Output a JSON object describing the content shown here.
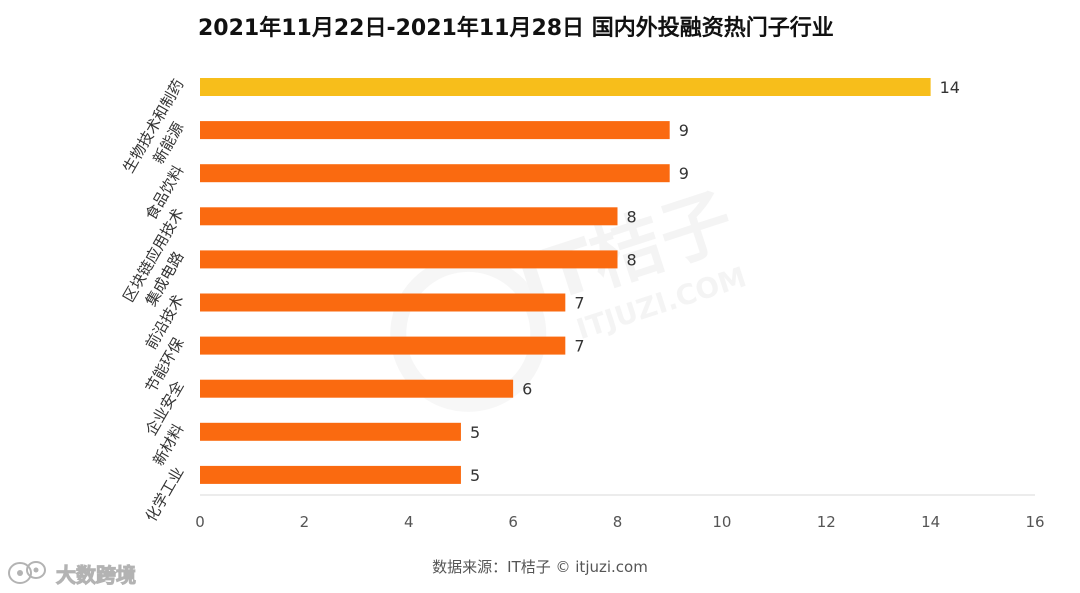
{
  "chart_data": {
    "type": "bar",
    "orientation": "horizontal",
    "title": "2021年11月22日-2021年11月28日 国内外投融资热门子行业",
    "categories": [
      "生物技术和制药",
      "新能源",
      "食品饮料",
      "区块链应用技术",
      "集成电路",
      "前沿技术",
      "节能环保",
      "企业安全",
      "新材料",
      "化学工业"
    ],
    "values": [
      14,
      9,
      9,
      8,
      8,
      7,
      7,
      6,
      5,
      5
    ],
    "xlim": [
      0,
      16
    ],
    "xticks": [
      0,
      2,
      4,
      6,
      8,
      10,
      12,
      14,
      16
    ],
    "grid": false,
    "legend": "none",
    "colors": {
      "highlight": "#F7BE1B",
      "bar": "#FA6A10",
      "axis": "#d9d9d9",
      "label": "#333333",
      "tick": "#555555"
    }
  },
  "source_note": "数据来源：IT桔子 © itjuzi.com",
  "watermarks": {
    "center_logo_text": "IT桔子",
    "center_url_text": "ITJUZI.COM",
    "brand_icon": "bubble-logo-icon",
    "brand_text": "大数跨境"
  }
}
